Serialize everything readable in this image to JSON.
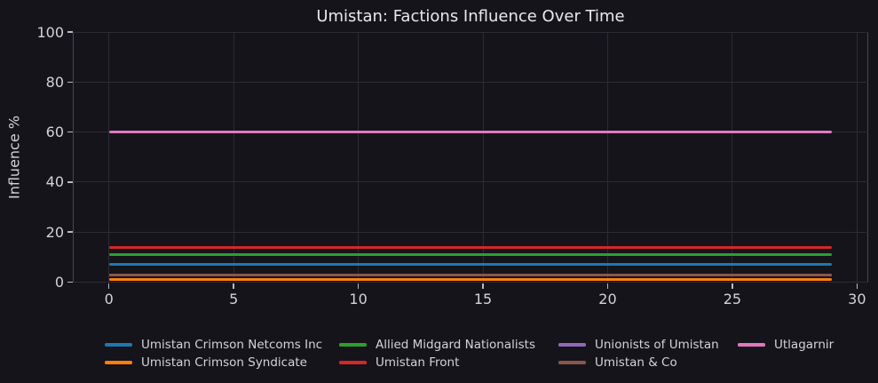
{
  "chart_data": {
    "type": "line",
    "title": "Umistan: Factions Influence Over Time",
    "xlabel": "",
    "ylabel": "Influence %",
    "x_ticks": [
      0,
      5,
      10,
      15,
      20,
      25,
      30
    ],
    "y_ticks": [
      0,
      20,
      40,
      60,
      80,
      100
    ],
    "xlim": [
      -1.45,
      30.45
    ],
    "ylim": [
      0,
      100
    ],
    "x_range": [
      0,
      29
    ],
    "grid": true,
    "legend_position": "bottom",
    "background_color": "#14141a",
    "series": [
      {
        "name": "Umistan Crimson Netcoms Inc",
        "color": "#1f77b4",
        "value": 7
      },
      {
        "name": "Umistan Crimson Syndicate",
        "color": "#ff7f0e",
        "value": 1
      },
      {
        "name": "Allied Midgard Nationalists",
        "color": "#2ca02c",
        "value": 11
      },
      {
        "name": "Umistan Front",
        "color": "#d62728",
        "value": 14
      },
      {
        "name": "Unionists of Umistan",
        "color": "#9467bd",
        "value": 3
      },
      {
        "name": "Umistan & Co",
        "color": "#8c564b",
        "value": 3
      },
      {
        "name": "Utlagarnir",
        "color": "#e377c2",
        "value": 60
      }
    ]
  }
}
